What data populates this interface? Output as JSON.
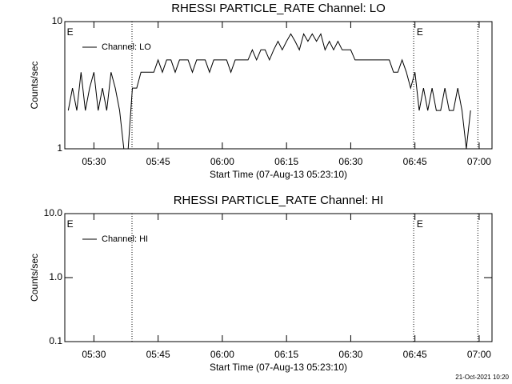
{
  "chart_data": [
    {
      "type": "line",
      "title": "RHESSI PARTICLE_RATE Channel: LO",
      "xlabel": "Start Time (07-Aug-13 05:23:10)",
      "ylabel": "Counts/sec",
      "log_y": true,
      "legend": "upper left",
      "x": [
        324,
        325,
        326,
        327,
        328,
        329,
        330,
        331,
        332,
        333,
        334,
        335,
        336,
        337,
        338,
        339,
        340,
        341,
        342,
        343,
        344,
        345,
        346,
        347,
        348,
        349,
        350,
        351,
        352,
        353,
        354,
        355,
        356,
        357,
        358,
        359,
        360,
        361,
        362,
        363,
        364,
        365,
        366,
        367,
        368,
        369,
        370,
        371,
        372,
        373,
        374,
        375,
        376,
        377,
        378,
        379,
        380,
        381,
        382,
        383,
        384,
        385,
        386,
        387,
        388,
        389,
        390,
        391,
        392,
        393,
        394,
        395,
        396,
        397,
        398,
        399,
        400,
        401,
        402,
        403,
        404,
        405,
        406,
        407,
        408,
        409,
        410,
        411,
        412,
        413,
        414,
        415,
        416,
        417,
        418
      ],
      "series": [
        {
          "name": "Channel: LO",
          "color": "#000000",
          "values": [
            2,
            3,
            2,
            4,
            2,
            3,
            4,
            2,
            3,
            2,
            4,
            3,
            2,
            1,
            1,
            3,
            3,
            4,
            4,
            4,
            4,
            5,
            4,
            5,
            5,
            4,
            5,
            5,
            5,
            4,
            5,
            5,
            5,
            4,
            5,
            5,
            5,
            5,
            4,
            5,
            5,
            5,
            5,
            6,
            5,
            6,
            6,
            5,
            6,
            7,
            6,
            7,
            8,
            7,
            6,
            8,
            7,
            8,
            7,
            8,
            6,
            7,
            6,
            7,
            6,
            6,
            6,
            5,
            5,
            5,
            5,
            5,
            5,
            5,
            5,
            5,
            4,
            4,
            5,
            4,
            3,
            4,
            2,
            3,
            2,
            3,
            2,
            2,
            3,
            2,
            2,
            3,
            2,
            1,
            2
          ]
        }
      ],
      "xlim": [
        323.2,
        423
      ],
      "xticks": [
        {
          "value": 330,
          "label": "05:30"
        },
        {
          "value": 345,
          "label": "05:45"
        },
        {
          "value": 360,
          "label": "06:00"
        },
        {
          "value": 375,
          "label": "06:15"
        },
        {
          "value": 390,
          "label": "06:30"
        },
        {
          "value": 405,
          "label": "06:45"
        },
        {
          "value": 420,
          "label": "07:00"
        }
      ],
      "ylim": [
        1,
        10
      ],
      "yticks": [
        1,
        10
      ],
      "vlines": [
        338.9,
        404.7,
        419.7
      ],
      "annotations": [
        {
          "text": "E",
          "x": 323.7
        },
        {
          "text": "E",
          "x": 405.4
        }
      ]
    },
    {
      "type": "line",
      "title": "RHESSI PARTICLE_RATE Channel: HI",
      "xlabel": "Start Time (07-Aug-13 05:23:10)",
      "ylabel": "Counts/sec",
      "log_y": true,
      "legend": "upper left",
      "x": [],
      "series": [
        {
          "name": "Channel: HI",
          "color": "#000000",
          "values": []
        }
      ],
      "xlim": [
        323.2,
        423
      ],
      "xticks": [
        {
          "value": 330,
          "label": "05:30"
        },
        {
          "value": 345,
          "label": "05:45"
        },
        {
          "value": 360,
          "label": "06:00"
        },
        {
          "value": 375,
          "label": "06:15"
        },
        {
          "value": 390,
          "label": "06:30"
        },
        {
          "value": 405,
          "label": "06:45"
        },
        {
          "value": 420,
          "label": "07:00"
        }
      ],
      "ylim": [
        0.1,
        10
      ],
      "yticks": [
        0.1,
        {
          "value": 1,
          "label": "1.0"
        },
        {
          "value": 10,
          "label": "10.0"
        }
      ],
      "vlines": [
        338.9,
        404.7,
        419.7
      ],
      "annotations": [
        {
          "text": "E",
          "x": 323.7
        },
        {
          "text": "E",
          "x": 405.4
        }
      ]
    }
  ],
  "footer": "21-Oct-2021 10:20"
}
